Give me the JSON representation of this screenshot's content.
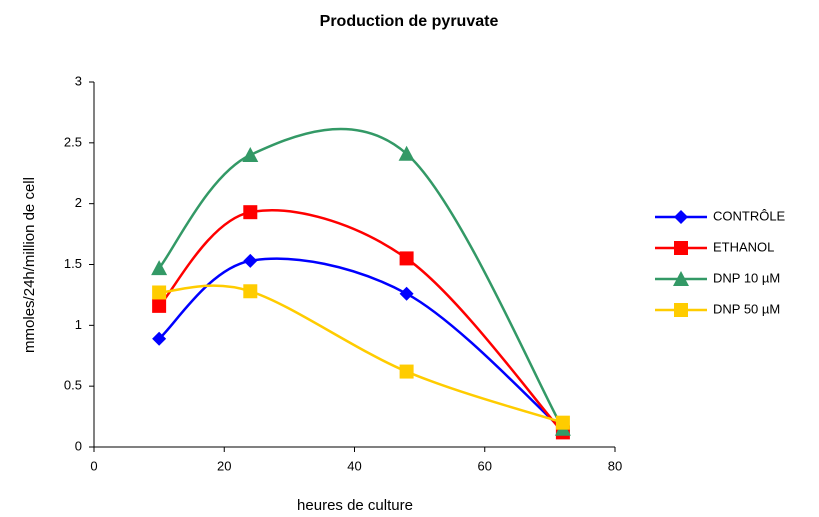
{
  "chart_data": {
    "type": "line",
    "title": "Production de pyruvate",
    "xlabel": "heures de culture",
    "ylabel": "mmoles/24h/million de cell",
    "xlim": [
      0,
      80
    ],
    "xticks": [
      0,
      20,
      40,
      60,
      80
    ],
    "ylim": [
      0,
      3
    ],
    "yticks": [
      0,
      0.5,
      1,
      1.5,
      2,
      2.5,
      3
    ],
    "grid": false,
    "legend": "right",
    "smooth": true,
    "series": [
      {
        "name": "CONTRÔLE",
        "color": "#0000ff",
        "marker": "diamond",
        "x": [
          10,
          24,
          48,
          72
        ],
        "values": [
          0.89,
          1.53,
          1.26,
          0.14
        ]
      },
      {
        "name": "ETHANOL",
        "color": "#ff0000",
        "marker": "square",
        "x": [
          10,
          24,
          48,
          72
        ],
        "values": [
          1.16,
          1.93,
          1.55,
          0.12
        ]
      },
      {
        "name": "DNP 10 µM",
        "color": "#339966",
        "marker": "triangle",
        "x": [
          10,
          24,
          48,
          72
        ],
        "values": [
          1.47,
          2.4,
          2.41,
          0.15
        ]
      },
      {
        "name": "DNP 50 µM",
        "color": "#ffcc00",
        "marker": "square",
        "x": [
          10,
          24,
          48,
          72
        ],
        "values": [
          1.27,
          1.28,
          0.62,
          0.2
        ]
      }
    ]
  }
}
